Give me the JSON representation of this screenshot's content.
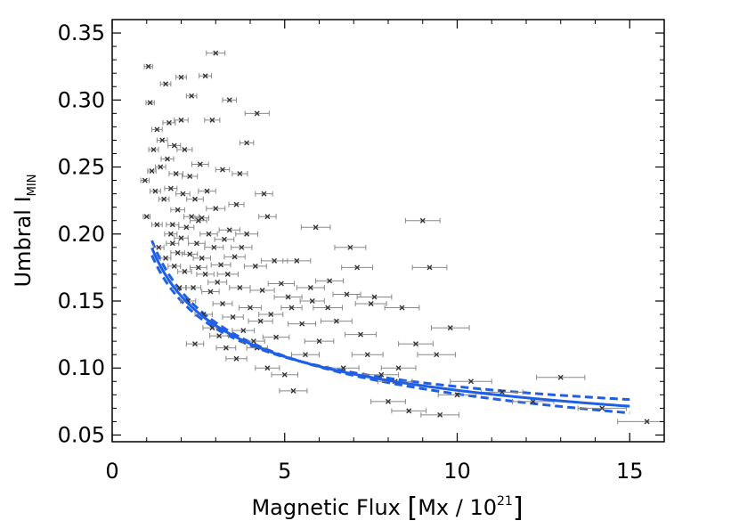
{
  "chart_data": {
    "type": "scatter",
    "title": "",
    "xlabel_main": "Magnetic Flux ",
    "xlabel_unit": "Mx / 10",
    "xlabel_sup": "21",
    "ylabel_main": "Umbral I",
    "ylabel_sub": "MIN",
    "xlim": [
      0,
      16
    ],
    "ylim": [
      0.045,
      0.36
    ],
    "xticks": [
      0,
      5,
      10,
      15
    ],
    "xtick_labels": [
      "0",
      "5",
      "10",
      "15"
    ],
    "yticks": [
      0.05,
      0.1,
      0.15,
      0.2,
      0.25,
      0.3,
      0.35
    ],
    "ytick_labels": [
      "0.05",
      "0.10",
      "0.15",
      "0.20",
      "0.25",
      "0.30",
      "0.35"
    ],
    "fit": {
      "model": "power_law",
      "a": 0.2,
      "b": -0.38,
      "x_range": [
        1.15,
        15.0
      ]
    },
    "confidence_band": {
      "scale_upper": [
        [
          1.0,
          1.03
        ],
        [
          5.5,
          1.0
        ],
        [
          15.0,
          1.07
        ]
      ],
      "scale_lower": [
        [
          1.0,
          0.97
        ],
        [
          5.5,
          1.0
        ],
        [
          15.0,
          0.93
        ]
      ]
    },
    "colors": {
      "fit": "#1f5fe8",
      "points": "#333333",
      "errorbar": "#888888"
    },
    "points": [
      [
        0.95,
        0.24,
        0.12
      ],
      [
        1.0,
        0.213,
        0.1
      ],
      [
        1.05,
        0.325,
        0.12
      ],
      [
        1.1,
        0.298,
        0.12
      ],
      [
        1.15,
        0.247,
        0.12
      ],
      [
        1.2,
        0.263,
        0.14
      ],
      [
        1.25,
        0.232,
        0.15
      ],
      [
        1.3,
        0.278,
        0.15
      ],
      [
        1.3,
        0.207,
        0.15
      ],
      [
        1.35,
        0.19,
        0.15
      ],
      [
        1.4,
        0.25,
        0.15
      ],
      [
        1.45,
        0.27,
        0.15
      ],
      [
        1.5,
        0.226,
        0.15
      ],
      [
        1.55,
        0.312,
        0.15
      ],
      [
        1.55,
        0.182,
        0.15
      ],
      [
        1.6,
        0.256,
        0.18
      ],
      [
        1.65,
        0.283,
        0.18
      ],
      [
        1.7,
        0.234,
        0.18
      ],
      [
        1.7,
        0.2,
        0.18
      ],
      [
        1.75,
        0.193,
        0.18
      ],
      [
        1.8,
        0.266,
        0.18
      ],
      [
        1.8,
        0.176,
        0.18
      ],
      [
        1.85,
        0.245,
        0.2
      ],
      [
        1.9,
        0.218,
        0.2
      ],
      [
        1.9,
        0.186,
        0.2
      ],
      [
        1.95,
        0.16,
        0.2
      ],
      [
        2.0,
        0.285,
        0.2
      ],
      [
        2.0,
        0.197,
        0.2
      ],
      [
        2.05,
        0.23,
        0.2
      ],
      [
        2.1,
        0.172,
        0.2
      ],
      [
        2.1,
        0.263,
        0.22
      ],
      [
        2.15,
        0.205,
        0.22
      ],
      [
        2.2,
        0.15,
        0.22
      ],
      [
        2.25,
        0.243,
        0.22
      ],
      [
        2.25,
        0.185,
        0.22
      ],
      [
        2.3,
        0.213,
        0.22
      ],
      [
        2.35,
        0.16,
        0.22
      ],
      [
        2.4,
        0.226,
        0.24
      ],
      [
        2.45,
        0.193,
        0.24
      ],
      [
        2.5,
        0.175,
        0.24
      ],
      [
        2.5,
        0.21,
        0.24
      ],
      [
        2.55,
        0.252,
        0.24
      ],
      [
        2.6,
        0.182,
        0.25
      ],
      [
        2.65,
        0.14,
        0.25
      ],
      [
        2.7,
        0.17,
        0.25
      ],
      [
        2.75,
        0.232,
        0.25
      ],
      [
        2.8,
        0.2,
        0.25
      ],
      [
        2.85,
        0.157,
        0.25
      ],
      [
        2.9,
        0.13,
        0.27
      ],
      [
        2.95,
        0.19,
        0.27
      ],
      [
        3.0,
        0.335,
        0.27
      ],
      [
        3.0,
        0.219,
        0.27
      ],
      [
        3.05,
        0.164,
        0.27
      ],
      [
        3.1,
        0.124,
        0.27
      ],
      [
        3.15,
        0.177,
        0.28
      ],
      [
        3.2,
        0.148,
        0.28
      ],
      [
        3.25,
        0.196,
        0.28
      ],
      [
        3.3,
        0.115,
        0.28
      ],
      [
        3.35,
        0.17,
        0.3
      ],
      [
        3.4,
        0.203,
        0.3
      ],
      [
        3.5,
        0.138,
        0.3
      ],
      [
        3.55,
        0.183,
        0.3
      ],
      [
        3.6,
        0.107,
        0.3
      ],
      [
        3.7,
        0.16,
        0.3
      ],
      [
        3.75,
        0.19,
        0.3
      ],
      [
        3.8,
        0.128,
        0.32
      ],
      [
        3.9,
        0.2,
        0.32
      ],
      [
        4.0,
        0.145,
        0.32
      ],
      [
        4.1,
        0.12,
        0.32
      ],
      [
        4.15,
        0.176,
        0.32
      ],
      [
        4.2,
        0.29,
        0.35
      ],
      [
        4.3,
        0.135,
        0.35
      ],
      [
        4.35,
        0.158,
        0.35
      ],
      [
        4.5,
        0.1,
        0.35
      ],
      [
        4.6,
        0.14,
        0.35
      ],
      [
        4.7,
        0.18,
        0.38
      ],
      [
        4.75,
        0.123,
        0.38
      ],
      [
        4.9,
        0.163,
        0.38
      ],
      [
        5.0,
        0.095,
        0.38
      ],
      [
        5.1,
        0.153,
        0.4
      ],
      [
        5.25,
        0.083,
        0.4
      ],
      [
        5.35,
        0.18,
        0.4
      ],
      [
        5.5,
        0.133,
        0.4
      ],
      [
        5.6,
        0.11,
        0.4
      ],
      [
        5.75,
        0.16,
        0.4
      ],
      [
        5.9,
        0.205,
        0.42
      ],
      [
        6.0,
        0.12,
        0.42
      ],
      [
        6.25,
        0.145,
        0.42
      ],
      [
        6.5,
        0.135,
        0.45
      ],
      [
        6.7,
        0.1,
        0.45
      ],
      [
        6.9,
        0.19,
        0.45
      ],
      [
        7.1,
        0.175,
        0.45
      ],
      [
        7.2,
        0.125,
        0.45
      ],
      [
        7.4,
        0.11,
        0.45
      ],
      [
        7.6,
        0.153,
        0.5
      ],
      [
        7.8,
        0.095,
        0.5
      ],
      [
        8.0,
        0.075,
        0.5
      ],
      [
        8.2,
        0.09,
        0.5
      ],
      [
        8.4,
        0.145,
        0.5
      ],
      [
        8.6,
        0.068,
        0.5
      ],
      [
        8.8,
        0.118,
        0.5
      ],
      [
        9.0,
        0.21,
        0.5
      ],
      [
        9.2,
        0.175,
        0.5
      ],
      [
        9.4,
        0.11,
        0.55
      ],
      [
        9.5,
        0.065,
        0.55
      ],
      [
        9.8,
        0.13,
        0.55
      ],
      [
        10.0,
        0.08,
        0.55
      ],
      [
        10.4,
        0.09,
        0.6
      ],
      [
        11.3,
        0.082,
        0.6
      ],
      [
        12.2,
        0.075,
        0.6
      ],
      [
        13.0,
        0.093,
        0.7
      ],
      [
        14.2,
        0.07,
        0.7
      ],
      [
        15.5,
        0.06,
        0.85
      ],
      [
        2.3,
        0.303,
        0.15
      ],
      [
        2.0,
        0.317,
        0.15
      ],
      [
        2.7,
        0.318,
        0.18
      ],
      [
        3.4,
        0.3,
        0.2
      ],
      [
        3.9,
        0.268,
        0.2
      ],
      [
        2.9,
        0.285,
        0.22
      ],
      [
        3.6,
        0.222,
        0.22
      ],
      [
        4.5,
        0.213,
        0.25
      ],
      [
        2.4,
        0.118,
        0.25
      ],
      [
        5.2,
        0.145,
        0.3
      ],
      [
        4.4,
        0.23,
        0.25
      ],
      [
        6.3,
        0.165,
        0.4
      ],
      [
        6.8,
        0.155,
        0.4
      ],
      [
        7.5,
        0.148,
        0.45
      ],
      [
        8.3,
        0.1,
        0.5
      ],
      [
        5.8,
        0.15,
        0.35
      ],
      [
        4.2,
        0.115,
        0.3
      ],
      [
        3.7,
        0.245,
        0.22
      ],
      [
        3.2,
        0.248,
        0.2
      ],
      [
        2.6,
        0.212,
        0.2
      ],
      [
        1.75,
        0.207,
        0.18
      ]
    ]
  }
}
